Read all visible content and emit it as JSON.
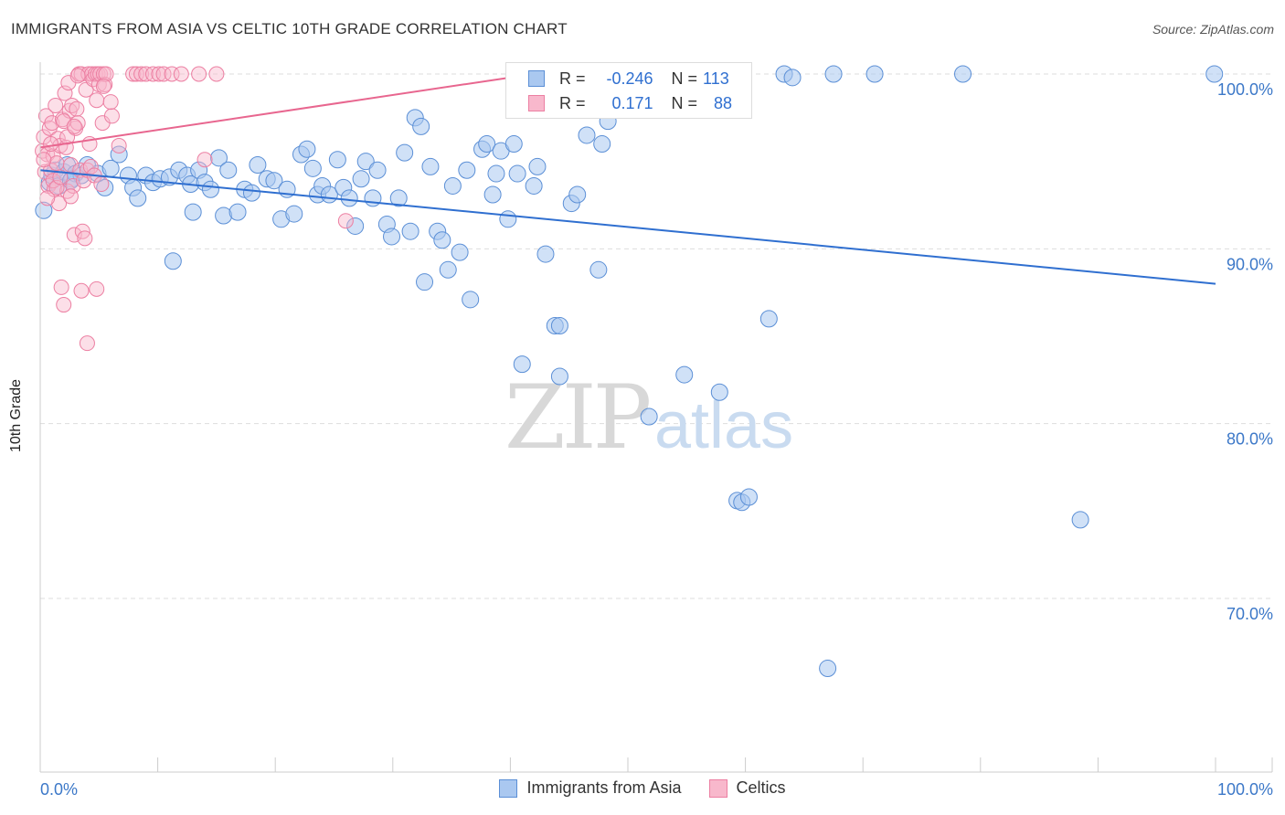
{
  "header": {
    "title": "IMMIGRANTS FROM ASIA VS CELTIC 10TH GRADE CORRELATION CHART",
    "source": "Source: ZipAtlas.com"
  },
  "watermark": {
    "zip": "ZIP",
    "atlas": "atlas"
  },
  "legend": {
    "rows": [
      {
        "r_label": "R = ",
        "r_value": "-0.246",
        "n_label": "N = ",
        "n_value": "113"
      },
      {
        "r_label": "R = ",
        "r_value": "0.171",
        "n_label": "N = ",
        "n_value": "88"
      }
    ]
  },
  "bottom_legend": {
    "asia": "Immigrants from Asia",
    "celtics": "Celtics"
  },
  "colors": {
    "asia_fill": "#aac8f0",
    "asia_stroke": "#5b8fd6",
    "asia_line": "#2f6fd0",
    "celtic_fill": "#f8b8cc",
    "celtic_stroke": "#ec7fa2",
    "celtic_line": "#e8668f",
    "axis_label": "#3c78c8",
    "grid": "#dddddd"
  },
  "chart_data": {
    "type": "scatter",
    "title": "IMMIGRANTS FROM ASIA VS CELTIC 10TH GRADE CORRELATION CHART",
    "xlabel": "",
    "ylabel": "10th Grade",
    "xlim": [
      0,
      100
    ],
    "ylim": [
      60,
      101
    ],
    "x_ticks": [
      "0.0%",
      "100.0%"
    ],
    "y_ticks": [
      "100.0%",
      "90.0%",
      "80.0%",
      "70.0%"
    ],
    "y_tick_values": [
      100,
      90,
      80,
      70
    ],
    "grid": true,
    "legend_position": "top-center",
    "series": [
      {
        "name": "Immigrants from Asia",
        "r": -0.246,
        "n": 113,
        "trend": {
          "x": [
            0,
            100
          ],
          "y": [
            94.5,
            88.0
          ]
        },
        "points": [
          [
            0.3,
            92.2
          ],
          [
            0.8,
            93.8
          ],
          [
            1.0,
            94.2
          ],
          [
            1.3,
            94.5
          ],
          [
            1.6,
            93.6
          ],
          [
            2.0,
            94.4
          ],
          [
            2.3,
            94.8
          ],
          [
            2.7,
            94.0
          ],
          [
            3.0,
            94.3
          ],
          [
            3.5,
            94.2
          ],
          [
            4.0,
            94.8
          ],
          [
            4.9,
            94.3
          ],
          [
            5.5,
            93.5
          ],
          [
            6.0,
            94.6
          ],
          [
            6.7,
            95.4
          ],
          [
            7.5,
            94.2
          ],
          [
            7.9,
            93.5
          ],
          [
            8.3,
            92.9
          ],
          [
            9.0,
            94.2
          ],
          [
            9.6,
            93.8
          ],
          [
            10.2,
            94.0
          ],
          [
            11.0,
            94.1
          ],
          [
            11.3,
            89.3
          ],
          [
            11.8,
            94.5
          ],
          [
            12.5,
            94.2
          ],
          [
            12.8,
            93.7
          ],
          [
            13.0,
            92.1
          ],
          [
            13.5,
            94.5
          ],
          [
            14.0,
            93.8
          ],
          [
            14.5,
            93.4
          ],
          [
            15.2,
            95.2
          ],
          [
            15.6,
            91.9
          ],
          [
            16.0,
            94.5
          ],
          [
            16.8,
            92.1
          ],
          [
            17.4,
            93.4
          ],
          [
            18.0,
            93.2
          ],
          [
            18.5,
            94.8
          ],
          [
            19.3,
            94.0
          ],
          [
            19.9,
            93.9
          ],
          [
            20.5,
            91.7
          ],
          [
            21.0,
            93.4
          ],
          [
            21.6,
            92.0
          ],
          [
            22.2,
            95.4
          ],
          [
            22.7,
            95.7
          ],
          [
            23.2,
            94.6
          ],
          [
            23.6,
            93.1
          ],
          [
            24.0,
            93.6
          ],
          [
            24.6,
            93.1
          ],
          [
            25.3,
            95.1
          ],
          [
            25.8,
            93.5
          ],
          [
            26.3,
            92.9
          ],
          [
            26.8,
            91.3
          ],
          [
            27.3,
            94.0
          ],
          [
            27.7,
            95.0
          ],
          [
            28.3,
            92.9
          ],
          [
            28.7,
            94.5
          ],
          [
            29.5,
            91.4
          ],
          [
            29.9,
            90.7
          ],
          [
            30.5,
            92.9
          ],
          [
            31.0,
            95.5
          ],
          [
            31.5,
            91.0
          ],
          [
            31.9,
            97.5
          ],
          [
            32.4,
            97.0
          ],
          [
            32.7,
            88.1
          ],
          [
            33.2,
            94.7
          ],
          [
            33.8,
            91.0
          ],
          [
            34.2,
            90.5
          ],
          [
            34.7,
            88.8
          ],
          [
            35.1,
            93.6
          ],
          [
            35.7,
            89.8
          ],
          [
            36.3,
            94.5
          ],
          [
            36.6,
            87.1
          ],
          [
            37.6,
            95.7
          ],
          [
            38.0,
            96.0
          ],
          [
            38.5,
            93.1
          ],
          [
            38.8,
            94.3
          ],
          [
            39.2,
            95.6
          ],
          [
            39.8,
            91.7
          ],
          [
            40.3,
            96.0
          ],
          [
            40.6,
            94.3
          ],
          [
            41.0,
            83.4
          ],
          [
            42.0,
            93.6
          ],
          [
            42.3,
            94.7
          ],
          [
            43.0,
            89.7
          ],
          [
            43.8,
            85.6
          ],
          [
            44.2,
            85.6
          ],
          [
            44.2,
            82.7
          ],
          [
            45.2,
            92.6
          ],
          [
            45.7,
            93.1
          ],
          [
            46.5,
            96.5
          ],
          [
            47.5,
            88.8
          ],
          [
            47.8,
            96.0
          ],
          [
            48.3,
            97.3
          ],
          [
            49.0,
            98.0
          ],
          [
            51.8,
            80.4
          ],
          [
            53.3,
            100.0
          ],
          [
            54.8,
            82.8
          ],
          [
            56.6,
            100.0
          ],
          [
            57.1,
            99.8
          ],
          [
            57.8,
            81.8
          ],
          [
            59.3,
            75.6
          ],
          [
            59.7,
            75.5
          ],
          [
            60.3,
            75.8
          ],
          [
            62.0,
            86.0
          ],
          [
            63.3,
            100.0
          ],
          [
            64.0,
            99.8
          ],
          [
            67.0,
            66.0
          ],
          [
            67.5,
            100.0
          ],
          [
            71.0,
            100.0
          ],
          [
            78.5,
            100.0
          ],
          [
            88.5,
            74.5
          ],
          [
            99.9,
            100.0
          ],
          [
            2.6,
            93.9
          ]
        ]
      },
      {
        "name": "Celtics",
        "r": 0.171,
        "n": 88,
        "trend": {
          "x": [
            0,
            42
          ],
          "y": [
            95.8,
            100.0
          ]
        },
        "points": [
          [
            0.2,
            95.6
          ],
          [
            0.3,
            96.4
          ],
          [
            0.4,
            94.4
          ],
          [
            0.5,
            97.6
          ],
          [
            0.6,
            95.4
          ],
          [
            0.7,
            93.6
          ],
          [
            0.8,
            96.9
          ],
          [
            0.9,
            94.5
          ],
          [
            1.0,
            97.2
          ],
          [
            1.1,
            95.3
          ],
          [
            1.2,
            93.4
          ],
          [
            1.3,
            98.2
          ],
          [
            1.4,
            94.9
          ],
          [
            1.5,
            96.3
          ],
          [
            1.6,
            92.6
          ],
          [
            1.7,
            95.9
          ],
          [
            1.8,
            87.8
          ],
          [
            1.9,
            97.4
          ],
          [
            2.0,
            86.8
          ],
          [
            2.1,
            98.9
          ],
          [
            2.2,
            95.8
          ],
          [
            2.3,
            93.3
          ],
          [
            2.4,
            99.5
          ],
          [
            2.5,
            97.9
          ],
          [
            2.6,
            94.8
          ],
          [
            2.7,
            98.2
          ],
          [
            2.8,
            93.6
          ],
          [
            2.9,
            90.8
          ],
          [
            3.0,
            96.9
          ],
          [
            3.1,
            98.0
          ],
          [
            3.2,
            97.2
          ],
          [
            3.3,
            100.0
          ],
          [
            3.4,
            94.5
          ],
          [
            3.5,
            100.0
          ],
          [
            3.6,
            91.0
          ],
          [
            3.7,
            93.9
          ],
          [
            3.8,
            90.6
          ],
          [
            3.9,
            99.1
          ],
          [
            4.0,
            94.5
          ],
          [
            4.1,
            100.0
          ],
          [
            4.2,
            96.0
          ],
          [
            4.3,
            94.7
          ],
          [
            4.4,
            100.0
          ],
          [
            4.5,
            99.7
          ],
          [
            4.6,
            94.2
          ],
          [
            4.7,
            100.0
          ],
          [
            4.8,
            98.5
          ],
          [
            4.9,
            100.0
          ],
          [
            5.0,
            99.4
          ],
          [
            5.1,
            100.0
          ],
          [
            5.2,
            93.7
          ],
          [
            5.3,
            97.2
          ],
          [
            5.4,
            100.0
          ],
          [
            5.5,
            99.4
          ],
          [
            5.6,
            100.0
          ],
          [
            6.1,
            97.6
          ],
          [
            6.7,
            95.9
          ],
          [
            7.9,
            100.0
          ],
          [
            8.2,
            100.0
          ],
          [
            8.6,
            100.0
          ],
          [
            9.0,
            100.0
          ],
          [
            9.6,
            100.0
          ],
          [
            10.1,
            100.0
          ],
          [
            10.5,
            100.0
          ],
          [
            11.2,
            100.0
          ],
          [
            12.0,
            100.0
          ],
          [
            13.5,
            100.0
          ],
          [
            14.0,
            95.1
          ],
          [
            15.0,
            100.0
          ],
          [
            26.0,
            91.6
          ],
          [
            41.0,
            100.0
          ],
          [
            43.0,
            100.0
          ],
          [
            0.3,
            95.1
          ],
          [
            0.6,
            92.9
          ],
          [
            0.9,
            96.0
          ],
          [
            1.1,
            93.9
          ],
          [
            1.4,
            93.5
          ],
          [
            1.7,
            94.1
          ],
          [
            2.0,
            97.3
          ],
          [
            2.3,
            96.4
          ],
          [
            2.6,
            93.0
          ],
          [
            2.9,
            97.0
          ],
          [
            3.2,
            99.9
          ],
          [
            3.5,
            87.6
          ],
          [
            4.0,
            84.6
          ],
          [
            4.8,
            87.7
          ],
          [
            5.4,
            99.3
          ],
          [
            6.0,
            98.4
          ]
        ]
      }
    ]
  }
}
